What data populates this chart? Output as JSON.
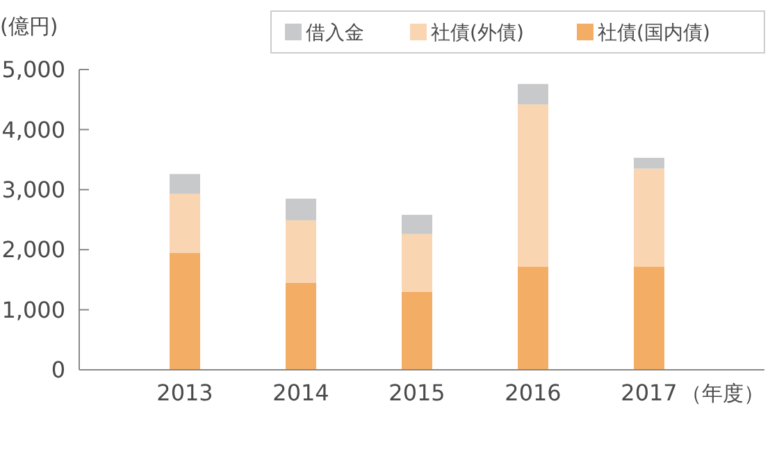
{
  "chart_data": {
    "type": "bar",
    "stacked": true,
    "ylabel": "(億円)",
    "xlabel": "（年度）",
    "categories": [
      "2013",
      "2014",
      "2015",
      "2016",
      "2017"
    ],
    "series": [
      {
        "name": "社債(国内債)",
        "color": "#f3ad65",
        "values": [
          1950,
          1450,
          1300,
          1720,
          1720
        ]
      },
      {
        "name": "社債(外債)",
        "color": "#f9d5b2",
        "values": [
          980,
          1040,
          960,
          2700,
          1630
        ]
      },
      {
        "name": "借入金",
        "color": "#c8c9ca",
        "values": [
          330,
          360,
          320,
          340,
          180
        ]
      }
    ],
    "ylim": [
      0,
      5000
    ],
    "yticks": [
      0,
      {
        "value": 1000,
        "label": "1,000"
      },
      {
        "value": 2000,
        "label": "2,000"
      },
      {
        "value": 3000,
        "label": "3,000"
      },
      {
        "value": 4000,
        "label": "4,000"
      },
      {
        "value": 5000,
        "label": "5,000"
      }
    ],
    "grid": false,
    "legend": "top right"
  }
}
